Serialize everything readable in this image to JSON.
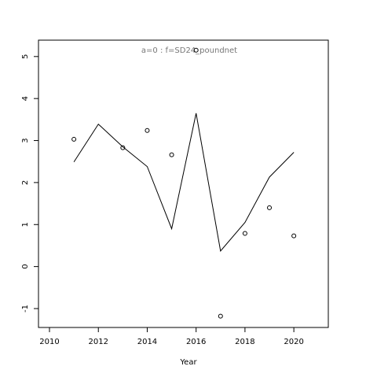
{
  "chart_data": {
    "type": "line",
    "title": "a=0  :  f=SD24_poundnet",
    "xlabel": "Year",
    "x": [
      2011,
      2012,
      2013,
      2014,
      2015,
      2016,
      2017,
      2018,
      2019,
      2020
    ],
    "series": [
      {
        "mode": "line",
        "color": "#000000",
        "values": [
          2.49,
          3.39,
          2.85,
          2.38,
          0.9,
          3.65,
          0.37,
          1.05,
          2.13,
          2.72
        ]
      },
      {
        "mode": "points",
        "color": "#000000",
        "values": [
          3.03,
          null,
          2.83,
          3.24,
          2.66,
          5.15,
          -1.18,
          0.79,
          1.4,
          0.73
        ]
      }
    ],
    "xlim": [
      2009.55,
      2021.41
    ],
    "xticks": [
      2010,
      2012,
      2014,
      2016,
      2018,
      2020
    ],
    "ylim": [
      -1.45,
      5.39
    ],
    "yticks": [
      -1,
      0,
      1,
      2,
      3,
      4,
      5
    ]
  }
}
